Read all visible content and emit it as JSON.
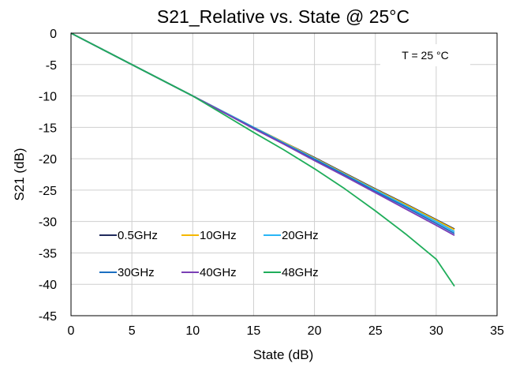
{
  "chart_data": {
    "type": "line",
    "title": "S21_Relative vs. State @ 25°C",
    "xlabel": "State (dB)",
    "ylabel": "S21 (dB)",
    "xlim": [
      0,
      35
    ],
    "ylim": [
      -45,
      0
    ],
    "xticks": [
      0,
      5,
      10,
      15,
      20,
      25,
      30,
      35
    ],
    "yticks": [
      0,
      -5,
      -10,
      -15,
      -20,
      -25,
      -30,
      -35,
      -40,
      -45
    ],
    "grid": true,
    "legend_position": "lower-left",
    "annotation": "T = 25 °C",
    "x": [
      0,
      2.5,
      5,
      7.5,
      10,
      12.5,
      15,
      17.5,
      20,
      22.5,
      25,
      27.5,
      30,
      31.5
    ],
    "series": [
      {
        "name": "0.5GHz",
        "color": "#1f2a5c",
        "values": [
          0,
          -2.5,
          -5,
          -7.5,
          -10,
          -12.5,
          -15,
          -17.4,
          -19.8,
          -22.3,
          -24.8,
          -27.2,
          -29.7,
          -31.2
        ]
      },
      {
        "name": "10GHz",
        "color": "#f5b800",
        "values": [
          0,
          -2.5,
          -5,
          -7.5,
          -10,
          -12.5,
          -15,
          -17.4,
          -19.9,
          -22.4,
          -24.9,
          -27.3,
          -29.8,
          -31.3
        ]
      },
      {
        "name": "20GHz",
        "color": "#29b6f6",
        "values": [
          0,
          -2.5,
          -5,
          -7.5,
          -10,
          -12.5,
          -15,
          -17.5,
          -20.0,
          -22.5,
          -25.0,
          -27.5,
          -30.0,
          -31.6
        ]
      },
      {
        "name": "30GHz",
        "color": "#1b6fc1",
        "values": [
          0,
          -2.5,
          -5,
          -7.5,
          -10,
          -12.6,
          -15.1,
          -17.6,
          -20.1,
          -22.6,
          -25.2,
          -27.7,
          -30.3,
          -31.9
        ]
      },
      {
        "name": "40GHz",
        "color": "#7a3fb5",
        "values": [
          0,
          -2.5,
          -5,
          -7.5,
          -10,
          -12.6,
          -15.2,
          -17.7,
          -20.3,
          -22.8,
          -25.4,
          -28.0,
          -30.6,
          -32.2
        ]
      },
      {
        "name": "48GHz",
        "color": "#1fad5a",
        "values": [
          0,
          -2.5,
          -5,
          -7.5,
          -10,
          -12.9,
          -15.8,
          -18.6,
          -21.6,
          -24.8,
          -28.3,
          -32.0,
          -36.0,
          -40.3
        ]
      }
    ]
  }
}
